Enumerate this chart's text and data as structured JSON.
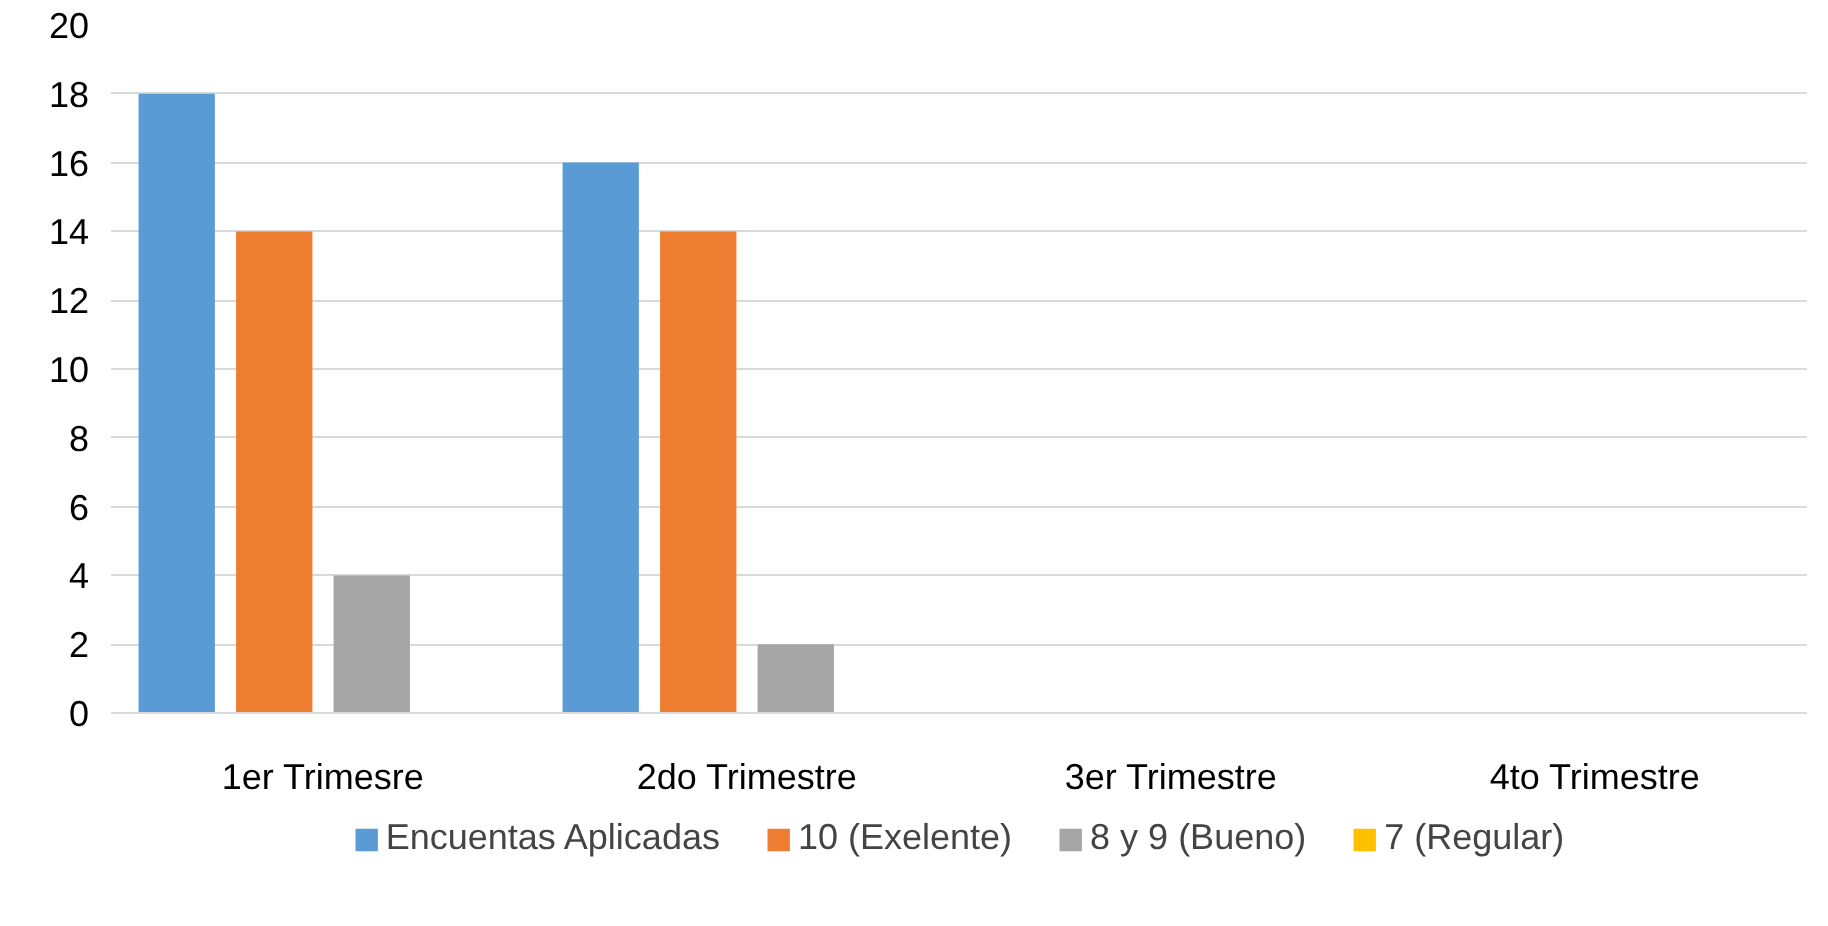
{
  "chart_data": {
    "type": "bar",
    "categories": [
      "1er Trimesre",
      "2do Trimestre",
      "3er Trimestre",
      "4to Trimestre"
    ],
    "series": [
      {
        "name": "Encuentas Aplicadas",
        "color": "#5b9bd5",
        "values": [
          18,
          16,
          0,
          0
        ]
      },
      {
        "name": "10 (Exelente)",
        "color": "#ed7d31",
        "values": [
          14,
          14,
          0,
          0
        ]
      },
      {
        "name": "8 y 9 (Bueno)",
        "color": "#a5a5a5",
        "values": [
          4,
          2,
          0,
          0
        ]
      },
      {
        "name": "7 (Regular)",
        "color": "#ffc000",
        "values": [
          0,
          0,
          0,
          0
        ]
      }
    ],
    "ylim": [
      0,
      20
    ],
    "yticks": [
      0,
      2,
      4,
      6,
      8,
      10,
      12,
      14,
      16,
      18,
      20
    ],
    "grid": "y",
    "legend": "bottom"
  }
}
